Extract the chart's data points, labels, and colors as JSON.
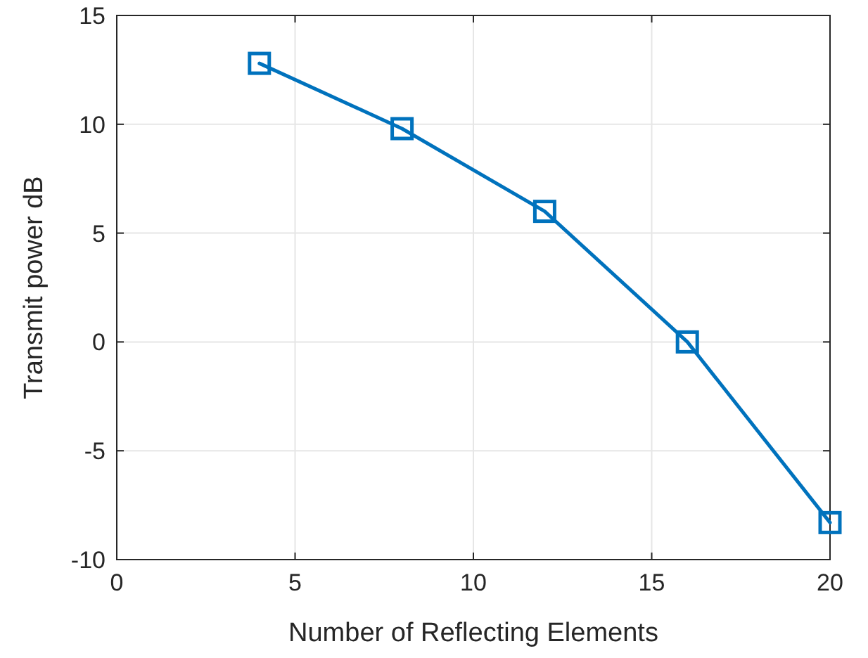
{
  "chart_data": {
    "type": "line",
    "xlabel": "Number of Reflecting Elements",
    "ylabel": "Transmit power dB",
    "x": [
      4,
      8,
      12,
      16,
      20
    ],
    "series": [
      {
        "color": "#0072bd",
        "values": [
          12.8,
          9.8,
          6.0,
          0.0,
          -8.3
        ]
      }
    ],
    "xlim": [
      0,
      20
    ],
    "xticks": [
      0,
      5,
      10,
      15,
      20
    ],
    "ylim": [
      -10,
      15
    ],
    "yticks": [
      -10,
      -5,
      0,
      5,
      10,
      15
    ],
    "grid": true,
    "marker": "square",
    "line_style": "solid"
  }
}
